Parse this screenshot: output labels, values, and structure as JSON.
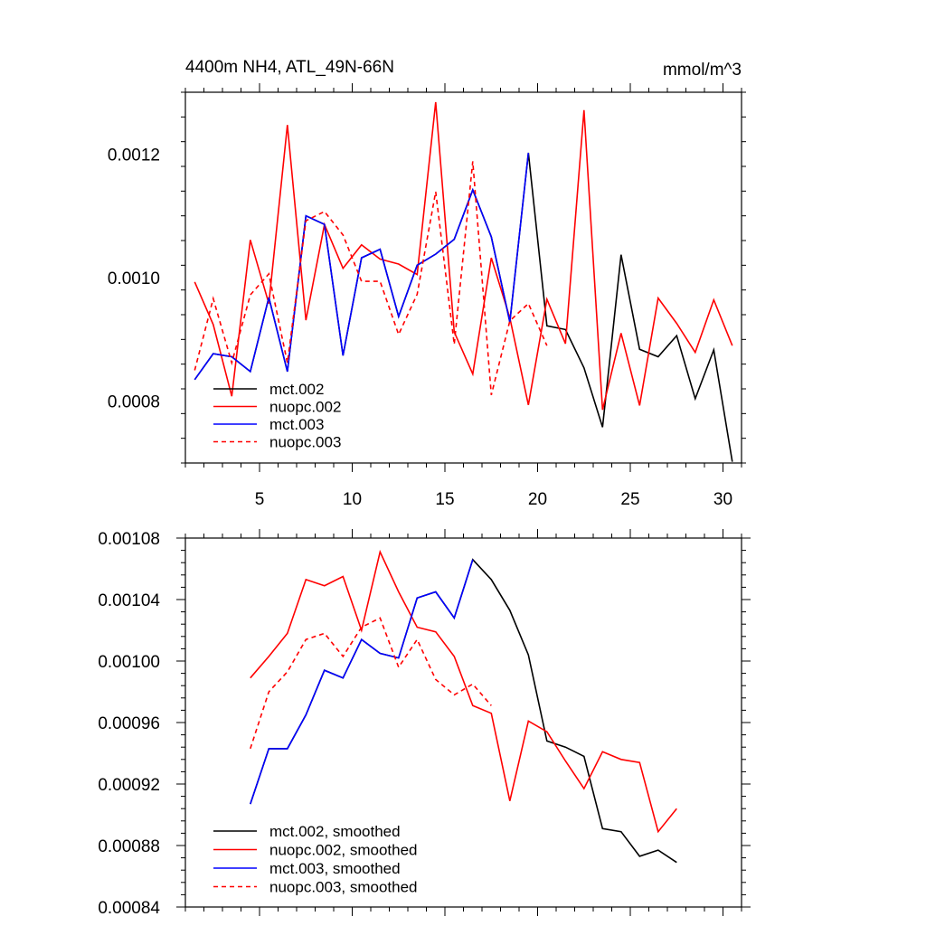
{
  "chart_data": [
    {
      "type": "line",
      "title": "4400m NH4, ATL_49N-66N",
      "units_label": "mmol/m^3",
      "xlabel": "",
      "ylabel": "",
      "xlim": [
        1,
        31
      ],
      "ylim": [
        0.0007,
        0.0013
      ],
      "xticks": [
        5,
        10,
        15,
        20,
        25,
        30
      ],
      "xtick_labels": [
        "5",
        "10",
        "15",
        "20",
        "25",
        "30"
      ],
      "yticks": [
        0.0008,
        0.001,
        0.0012
      ],
      "ytick_labels": [
        "0.0008",
        "0.0010",
        "0.0012"
      ],
      "legend_position": "bottom-left",
      "series": [
        {
          "name": "mct.002",
          "color": "#000000",
          "dash": "solid",
          "x": [
            1.5,
            2.5,
            3.5,
            4.5,
            5.5,
            6.5,
            7.5,
            8.5,
            9.5,
            10.5,
            11.5,
            12.5,
            13.5,
            14.5,
            15.5,
            16.5,
            17.5,
            18.5,
            19.5,
            20.5,
            21.5,
            22.5,
            23.5,
            24.5,
            25.5,
            26.5,
            27.5,
            28.5,
            29.5,
            30.5
          ],
          "values": [
            0.000835,
            0.000877,
            0.000872,
            0.000848,
            0.000968,
            0.000848,
            0.0011,
            0.001086,
            0.000874,
            0.001032,
            0.001046,
            0.000937,
            0.00102,
            0.001038,
            0.001062,
            0.001142,
            0.001066,
            0.000928,
            0.001202,
            0.000922,
            0.000916,
            0.000854,
            0.000758,
            0.001037,
            0.000884,
            0.000872,
            0.000906,
            0.000804,
            0.000883,
            0.000702
          ]
        },
        {
          "name": "nuopc.002",
          "color": "#ff0000",
          "dash": "solid",
          "x": [
            1.5,
            2.5,
            3.5,
            4.5,
            5.5,
            6.5,
            7.5,
            8.5,
            9.5,
            10.5,
            11.5,
            12.5,
            13.5,
            14.5,
            15.5,
            16.5,
            17.5,
            18.5,
            19.5,
            20.5,
            21.5,
            22.5,
            23.5,
            24.5,
            25.5,
            26.5,
            27.5,
            28.5,
            29.5,
            30.5
          ],
          "values": [
            0.000993,
            0.000924,
            0.000808,
            0.001061,
            0.000958,
            0.001247,
            0.000931,
            0.001086,
            0.001015,
            0.001053,
            0.00103,
            0.001022,
            0.001005,
            0.001284,
            0.000912,
            0.000844,
            0.001032,
            0.000935,
            0.000794,
            0.000965,
            0.000893,
            0.001271,
            0.000786,
            0.00091,
            0.000793,
            0.000967,
            0.000926,
            0.000879,
            0.000964,
            0.00089
          ]
        },
        {
          "name": "mct.003",
          "color": "#0000ff",
          "dash": "solid",
          "x": [
            1.5,
            2.5,
            3.5,
            4.5,
            5.5,
            6.5,
            7.5,
            8.5,
            9.5,
            10.5,
            11.5,
            12.5,
            13.5,
            14.5,
            15.5,
            16.5,
            17.5,
            18.5,
            19.5
          ],
          "values": [
            0.000835,
            0.000877,
            0.000872,
            0.000848,
            0.000968,
            0.000848,
            0.0011,
            0.001086,
            0.000874,
            0.001032,
            0.001046,
            0.000937,
            0.00102,
            0.001038,
            0.001062,
            0.001142,
            0.001066,
            0.000928,
            0.001202
          ]
        },
        {
          "name": "nuopc.003",
          "color": "#ff0000",
          "dash": "dashed",
          "x": [
            1.5,
            2.5,
            3.5,
            4.5,
            5.5,
            6.5,
            7.5,
            8.5,
            9.5,
            10.5,
            11.5,
            12.5,
            13.5,
            14.5,
            15.5,
            16.5,
            17.5,
            18.5,
            19.5,
            20.5
          ],
          "values": [
            0.00085,
            0.000966,
            0.000862,
            0.000972,
            0.001006,
            0.000862,
            0.001092,
            0.001107,
            0.001069,
            0.000994,
            0.000994,
            0.000908,
            0.000973,
            0.001139,
            0.000892,
            0.001188,
            0.00081,
            0.00093,
            0.000958,
            0.00089
          ]
        }
      ]
    },
    {
      "type": "line",
      "title": "",
      "xlabel": "",
      "ylabel": "",
      "xlim": [
        1,
        31
      ],
      "ylim": [
        0.00084,
        0.00108
      ],
      "xticks": [
        5,
        10,
        15,
        20,
        25,
        30
      ],
      "yticks": [
        0.00084,
        0.00088,
        0.00092,
        0.00096,
        0.001,
        0.00104,
        0.00108
      ],
      "ytick_labels": [
        "0.00084",
        "0.00088",
        "0.00092",
        "0.00096",
        "0.00100",
        "0.00104",
        "0.00108"
      ],
      "legend_position": "bottom-left",
      "series": [
        {
          "name": "mct.002, smoothed",
          "color": "#000000",
          "dash": "solid",
          "x": [
            4.5,
            5.5,
            6.5,
            7.5,
            8.5,
            9.5,
            10.5,
            11.5,
            12.5,
            13.5,
            14.5,
            15.5,
            16.5,
            17.5,
            18.5,
            19.5,
            20.5,
            21.5,
            22.5,
            23.5,
            24.5,
            25.5,
            26.5,
            27.5
          ],
          "values": [
            0.000907,
            0.000943,
            0.000943,
            0.000965,
            0.000994,
            0.000989,
            0.001014,
            0.001005,
            0.001002,
            0.001041,
            0.001045,
            0.001028,
            0.001066,
            0.001053,
            0.001033,
            0.001004,
            0.000948,
            0.000944,
            0.000938,
            0.000891,
            0.000889,
            0.000873,
            0.000877,
            0.000869
          ]
        },
        {
          "name": "nuopc.002, smoothed",
          "color": "#ff0000",
          "dash": "solid",
          "x": [
            4.5,
            5.5,
            6.5,
            7.5,
            8.5,
            9.5,
            10.5,
            11.5,
            12.5,
            13.5,
            14.5,
            15.5,
            16.5,
            17.5,
            18.5,
            19.5,
            20.5,
            21.5,
            22.5,
            23.5,
            24.5,
            25.5,
            26.5,
            27.5
          ],
          "values": [
            0.000989,
            0.001003,
            0.001018,
            0.001053,
            0.001049,
            0.001055,
            0.00102,
            0.001071,
            0.001045,
            0.001022,
            0.001019,
            0.001003,
            0.000971,
            0.000966,
            0.000909,
            0.000961,
            0.000954,
            0.000935,
            0.000917,
            0.000941,
            0.000936,
            0.000934,
            0.000889,
            0.000904
          ]
        },
        {
          "name": "mct.003, smoothed",
          "color": "#0000ff",
          "dash": "solid",
          "x": [
            4.5,
            5.5,
            6.5,
            7.5,
            8.5,
            9.5,
            10.5,
            11.5,
            12.5,
            13.5,
            14.5,
            15.5,
            16.5
          ],
          "values": [
            0.000907,
            0.000943,
            0.000943,
            0.000965,
            0.000994,
            0.000989,
            0.001014,
            0.001005,
            0.001002,
            0.001041,
            0.001045,
            0.001028,
            0.001066
          ]
        },
        {
          "name": "nuopc.003, smoothed",
          "color": "#ff0000",
          "dash": "dashed",
          "x": [
            4.5,
            5.5,
            6.5,
            7.5,
            8.5,
            9.5,
            10.5,
            11.5,
            12.5,
            13.5,
            14.5,
            15.5,
            16.5,
            17.5
          ],
          "values": [
            0.000943,
            0.00098,
            0.000993,
            0.001014,
            0.001018,
            0.001003,
            0.001022,
            0.001028,
            0.000996,
            0.001014,
            0.000988,
            0.000978,
            0.000985,
            0.000971
          ]
        }
      ]
    }
  ]
}
